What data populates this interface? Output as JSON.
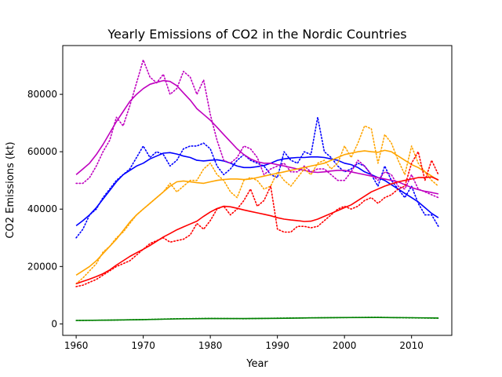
{
  "chart_data": {
    "type": "line",
    "title": "Yearly Emissions of CO2 in the Nordic Countries",
    "xlabel": "Year",
    "ylabel": "CO2 Emissions (kt)",
    "xlim": [
      1958,
      2016
    ],
    "ylim": [
      -4000,
      97000
    ],
    "xticks": [
      1960,
      1970,
      1980,
      1990,
      2000,
      2010
    ],
    "yticks": [
      0,
      20000,
      40000,
      60000,
      80000
    ],
    "grid": false,
    "legend": "none",
    "series": [
      {
        "color": "#0000ff",
        "style": "dotted",
        "x": [
          1960,
          1961,
          1962,
          1963,
          1964,
          1965,
          1966,
          1967,
          1968,
          1969,
          1970,
          1971,
          1972,
          1973,
          1974,
          1975,
          1976,
          1977,
          1978,
          1979,
          1980,
          1981,
          1982,
          1983,
          1984,
          1985,
          1986,
          1987,
          1988,
          1989,
          1990,
          1991,
          1992,
          1993,
          1994,
          1995,
          1996,
          1997,
          1998,
          1999,
          2000,
          2001,
          2002,
          2003,
          2004,
          2005,
          2006,
          2007,
          2008,
          2009,
          2010,
          2011,
          2012,
          2013,
          2014
        ],
        "y": [
          30000,
          33000,
          38000,
          40000,
          44000,
          47000,
          50000,
          52000,
          54000,
          58000,
          62000,
          58000,
          60000,
          59000,
          55000,
          57000,
          61000,
          62000,
          62000,
          63000,
          61000,
          55000,
          52000,
          54000,
          57000,
          59000,
          57000,
          56000,
          55000,
          52000,
          51000,
          60000,
          57000,
          56000,
          60000,
          59000,
          72000,
          60000,
          58000,
          55000,
          53000,
          54000,
          56000,
          55000,
          52000,
          48000,
          55000,
          50000,
          47000,
          44000,
          48000,
          42000,
          38000,
          38000,
          34000
        ]
      },
      {
        "color": "#0000ff",
        "style": "solid",
        "x": [
          1960,
          1961,
          1962,
          1963,
          1964,
          1965,
          1966,
          1967,
          1968,
          1969,
          1970,
          1971,
          1972,
          1973,
          1974,
          1975,
          1976,
          1977,
          1978,
          1979,
          1980,
          1981,
          1982,
          1983,
          1984,
          1985,
          1986,
          1987,
          1988,
          1989,
          1990,
          1991,
          1992,
          1993,
          1994,
          1995,
          1996,
          1997,
          1998,
          1999,
          2000,
          2001,
          2002,
          2003,
          2004,
          2005,
          2006,
          2007,
          2008,
          2009,
          2010,
          2011,
          2012,
          2013,
          2014
        ],
        "y": [
          34200,
          36000,
          38000,
          40500,
          43500,
          46500,
          49500,
          52000,
          53500,
          55000,
          56000,
          57500,
          58500,
          59500,
          59700,
          59200,
          58500,
          58000,
          57000,
          56800,
          57000,
          57200,
          56800,
          56000,
          55000,
          54500,
          54500,
          54800,
          55200,
          56000,
          57000,
          57500,
          57800,
          58000,
          58000,
          58200,
          58200,
          58000,
          57500,
          57000,
          56000,
          55500,
          54500,
          53000,
          52000,
          51000,
          50000,
          48500,
          47000,
          45500,
          44000,
          42500,
          40500,
          38500,
          37000
        ]
      },
      {
        "color": "#bf00bf",
        "style": "dotted",
        "x": [
          1960,
          1961,
          1962,
          1963,
          1964,
          1965,
          1966,
          1967,
          1968,
          1969,
          1970,
          1971,
          1972,
          1973,
          1974,
          1975,
          1976,
          1977,
          1978,
          1979,
          1980,
          1981,
          1982,
          1983,
          1984,
          1985,
          1986,
          1987,
          1988,
          1989,
          1990,
          1991,
          1992,
          1993,
          1994,
          1995,
          1996,
          1997,
          1998,
          1999,
          2000,
          2001,
          2002,
          2003,
          2004,
          2005,
          2006,
          2007,
          2008,
          2009,
          2010,
          2011,
          2012,
          2013,
          2014
        ],
        "y": [
          49000,
          49000,
          51000,
          55000,
          60000,
          64000,
          72000,
          69000,
          76000,
          84000,
          92000,
          86000,
          84000,
          87000,
          80000,
          82000,
          88000,
          86000,
          80000,
          85000,
          73000,
          64000,
          57000,
          56000,
          58000,
          62000,
          61000,
          58000,
          52000,
          54000,
          55000,
          56000,
          53000,
          53000,
          55000,
          53000,
          54000,
          54000,
          52000,
          50000,
          50000,
          53000,
          57000,
          55000,
          52000,
          50000,
          53000,
          52000,
          48000,
          47000,
          52000,
          47000,
          46000,
          45000,
          44000
        ]
      },
      {
        "color": "#bf00bf",
        "style": "solid",
        "x": [
          1960,
          1961,
          1962,
          1963,
          1964,
          1965,
          1966,
          1967,
          1968,
          1969,
          1970,
          1971,
          1972,
          1973,
          1974,
          1975,
          1976,
          1977,
          1978,
          1979,
          1980,
          1981,
          1982,
          1983,
          1984,
          1985,
          1986,
          1987,
          1988,
          1989,
          1990,
          1991,
          1992,
          1993,
          1994,
          1995,
          1996,
          1997,
          1998,
          1999,
          2000,
          2001,
          2002,
          2003,
          2004,
          2005,
          2006,
          2007,
          2008,
          2009,
          2010,
          2011,
          2012,
          2013,
          2014
        ],
        "y": [
          52000,
          54000,
          56000,
          59000,
          62500,
          66500,
          70500,
          74000,
          77500,
          80000,
          82000,
          83500,
          84200,
          84800,
          84500,
          83000,
          80500,
          78000,
          75000,
          73000,
          71000,
          68500,
          66000,
          63500,
          61000,
          59000,
          57500,
          56500,
          56000,
          56000,
          55500,
          55000,
          54500,
          54000,
          53500,
          53000,
          52800,
          53000,
          53300,
          53500,
          53500,
          53000,
          52500,
          52000,
          51500,
          51000,
          50500,
          50000,
          49500,
          48500,
          47500,
          46800,
          46200,
          45800,
          45300
        ]
      },
      {
        "color": "#ffa500",
        "style": "dotted",
        "x": [
          1960,
          1961,
          1962,
          1963,
          1964,
          1965,
          1966,
          1967,
          1968,
          1969,
          1970,
          1971,
          1972,
          1973,
          1974,
          1975,
          1976,
          1977,
          1978,
          1979,
          1980,
          1981,
          1982,
          1983,
          1984,
          1985,
          1986,
          1987,
          1988,
          1989,
          1990,
          1991,
          1992,
          1993,
          1994,
          1995,
          1996,
          1997,
          1998,
          1999,
          2000,
          2001,
          2002,
          2003,
          2004,
          2005,
          2006,
          2007,
          2008,
          2009,
          2010,
          2011,
          2012,
          2013,
          2014
        ],
        "y": [
          14000,
          16000,
          18500,
          21000,
          25000,
          27000,
          30000,
          32000,
          35000,
          38000,
          40000,
          42000,
          44000,
          46000,
          49000,
          46000,
          48000,
          50000,
          50000,
          54000,
          56000,
          52000,
          50000,
          46000,
          44000,
          50000,
          51000,
          50000,
          47000,
          48000,
          53000,
          50000,
          48000,
          51000,
          54000,
          52000,
          56000,
          57000,
          54000,
          56000,
          62000,
          58000,
          63000,
          69000,
          68000,
          56000,
          66000,
          63000,
          57000,
          52000,
          62000,
          56000,
          53000,
          50000,
          48000
        ]
      },
      {
        "color": "#ffa500",
        "style": "solid",
        "x": [
          1960,
          1961,
          1962,
          1963,
          1964,
          1965,
          1966,
          1967,
          1968,
          1969,
          1970,
          1971,
          1972,
          1973,
          1974,
          1975,
          1976,
          1977,
          1978,
          1979,
          1980,
          1981,
          1982,
          1983,
          1984,
          1985,
          1986,
          1987,
          1988,
          1989,
          1990,
          1991,
          1992,
          1993,
          1994,
          1995,
          1996,
          1997,
          1998,
          1999,
          2000,
          2001,
          2002,
          2003,
          2004,
          2005,
          2006,
          2007,
          2008,
          2009,
          2010,
          2011,
          2012,
          2013,
          2014
        ],
        "y": [
          17000,
          18500,
          20000,
          22000,
          24500,
          27000,
          29500,
          32500,
          35500,
          38000,
          40000,
          42000,
          44000,
          46000,
          48000,
          49500,
          49800,
          49500,
          49200,
          49000,
          49500,
          50000,
          50300,
          50500,
          50500,
          50300,
          50500,
          51000,
          51500,
          52000,
          52500,
          53000,
          53500,
          54000,
          54500,
          55000,
          55500,
          56000,
          57000,
          58000,
          59000,
          59500,
          60000,
          60300,
          60000,
          59800,
          60500,
          60000,
          58500,
          57000,
          55500,
          54500,
          53000,
          51500,
          50000
        ]
      },
      {
        "color": "#ff0000",
        "style": "dotted",
        "x": [
          1960,
          1961,
          1962,
          1963,
          1964,
          1965,
          1966,
          1967,
          1968,
          1969,
          1970,
          1971,
          1972,
          1973,
          1974,
          1975,
          1976,
          1977,
          1978,
          1979,
          1980,
          1981,
          1982,
          1983,
          1984,
          1985,
          1986,
          1987,
          1988,
          1989,
          1990,
          1991,
          1992,
          1993,
          1994,
          1995,
          1996,
          1997,
          1998,
          1999,
          2000,
          2001,
          2002,
          2003,
          2004,
          2005,
          2006,
          2007,
          2008,
          2009,
          2010,
          2011,
          2012,
          2013,
          2014
        ],
        "y": [
          13000,
          13500,
          14500,
          15500,
          17000,
          18500,
          20000,
          21000,
          22000,
          24000,
          26000,
          28000,
          29000,
          30000,
          28500,
          29000,
          29500,
          31000,
          35000,
          33000,
          36000,
          40000,
          41000,
          38000,
          40000,
          43000,
          47000,
          41000,
          43000,
          48000,
          33000,
          32000,
          32000,
          34000,
          34000,
          33500,
          34000,
          36000,
          38000,
          40000,
          41000,
          40000,
          41000,
          43000,
          44000,
          42000,
          44000,
          45000,
          47000,
          48000,
          56000,
          60000,
          50000,
          57000,
          52000
        ]
      },
      {
        "color": "#ff0000",
        "style": "solid",
        "x": [
          1960,
          1961,
          1962,
          1963,
          1964,
          1965,
          1966,
          1967,
          1968,
          1969,
          1970,
          1971,
          1972,
          1973,
          1974,
          1975,
          1976,
          1977,
          1978,
          1979,
          1980,
          1981,
          1982,
          1983,
          1984,
          1985,
          1986,
          1987,
          1988,
          1989,
          1990,
          1991,
          1992,
          1993,
          1994,
          1995,
          1996,
          1997,
          1998,
          1999,
          2000,
          2001,
          2002,
          2003,
          2004,
          2005,
          2006,
          2007,
          2008,
          2009,
          2010,
          2011,
          2012,
          2013,
          2014
        ],
        "y": [
          14000,
          14800,
          15600,
          16500,
          17500,
          18800,
          20500,
          22000,
          23500,
          24800,
          26000,
          27300,
          28800,
          30300,
          31500,
          32800,
          33800,
          34800,
          35800,
          37500,
          39000,
          40200,
          41000,
          40800,
          40300,
          39700,
          39200,
          38700,
          38200,
          37700,
          37000,
          36500,
          36200,
          36000,
          35700,
          35800,
          36500,
          37500,
          38500,
          39500,
          40500,
          41500,
          43000,
          44500,
          46000,
          47000,
          48000,
          48800,
          49500,
          50000,
          50500,
          51000,
          51000,
          51200,
          50200
        ]
      },
      {
        "color": "#008000",
        "style": "dotted",
        "x": [
          1960,
          1965,
          1970,
          1975,
          1980,
          1985,
          1990,
          1995,
          2000,
          2005,
          2010,
          2014
        ],
        "y": [
          1200,
          1300,
          1500,
          1800,
          1900,
          1800,
          2000,
          2100,
          2200,
          2300,
          2100,
          2000
        ]
      },
      {
        "color": "#008000",
        "style": "solid",
        "x": [
          1960,
          1965,
          1970,
          1975,
          1980,
          1985,
          1990,
          1995,
          2000,
          2005,
          2010,
          2014
        ],
        "y": [
          1200,
          1300,
          1500,
          1750,
          1850,
          1850,
          1950,
          2100,
          2200,
          2250,
          2150,
          2050
        ]
      }
    ]
  }
}
